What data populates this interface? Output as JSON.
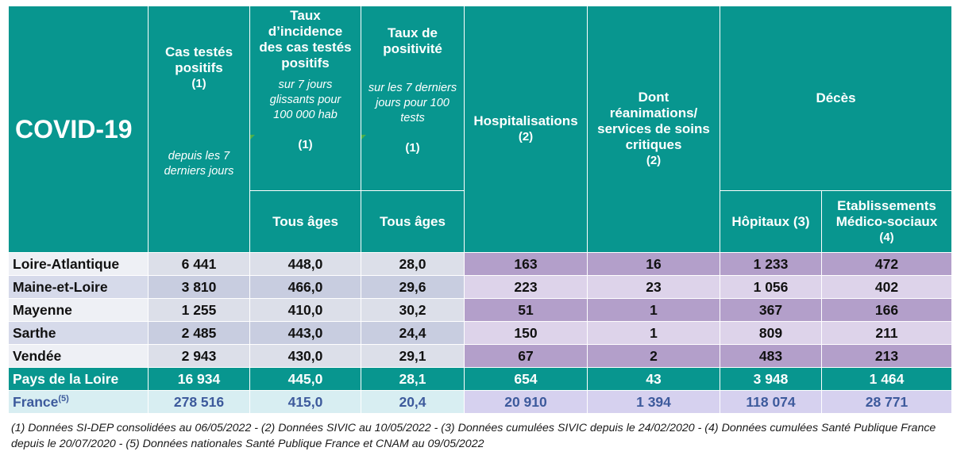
{
  "header": {
    "title": "COVID-19",
    "cas": {
      "label": "Cas testés positifs",
      "note": "(1)",
      "sub": "depuis les 7 derniers jours"
    },
    "taux_incidence": {
      "label": "Taux d’incidence des cas testés positifs",
      "sub": "sur 7 jours glissants pour 100 000 hab",
      "note": "(1)",
      "age": "Tous âges"
    },
    "taux_positivite": {
      "label": "Taux de positivité",
      "sub": "sur les 7 derniers jours pour 100 tests",
      "note": "(1)",
      "age": "Tous âges"
    },
    "hospitalisations": {
      "label": "Hospitalisations",
      "note": "(2)"
    },
    "reanimations": {
      "label": "Dont réanimations/ services de soins critiques",
      "note": "(2)"
    },
    "deces": {
      "label": "Décès",
      "hopitaux": "Hôpitaux (3)",
      "ems": "Etablissements Médico-sociaux",
      "ems_note": "(4)"
    }
  },
  "rows": [
    {
      "name": "Loire-Atlantique",
      "cas": "6 441",
      "incidence": "448,0",
      "positivite": "28,0",
      "hosp": "163",
      "rea": "16",
      "hopitaux": "1 233",
      "ems": "472"
    },
    {
      "name": "Maine-et-Loire",
      "cas": "3 810",
      "incidence": "466,0",
      "positivite": "29,6",
      "hosp": "223",
      "rea": "23",
      "hopitaux": "1 056",
      "ems": "402"
    },
    {
      "name": "Mayenne",
      "cas": "1 255",
      "incidence": "410,0",
      "positivite": "30,2",
      "hosp": "51",
      "rea": "1",
      "hopitaux": "367",
      "ems": "166"
    },
    {
      "name": "Sarthe",
      "cas": "2 485",
      "incidence": "443,0",
      "positivite": "24,4",
      "hosp": "150",
      "rea": "1",
      "hopitaux": "809",
      "ems": "211"
    },
    {
      "name": "Vendée",
      "cas": "2 943",
      "incidence": "430,0",
      "positivite": "29,1",
      "hosp": "67",
      "rea": "2",
      "hopitaux": "483",
      "ems": "213"
    }
  ],
  "region": {
    "name": "Pays de la Loire",
    "cas": "16 934",
    "incidence": "445,0",
    "positivite": "28,1",
    "hosp": "654",
    "rea": "43",
    "hopitaux": "3 948",
    "ems": "1 464"
  },
  "france": {
    "name": "France",
    "sup": "(5)",
    "cas": "278 516",
    "incidence": "415,0",
    "positivite": "20,4",
    "hosp": "20 910",
    "rea": "1 394",
    "hopitaux": "118 074",
    "ems": "28 771"
  },
  "footnote": "(1) Données SI-DEP consolidées au 06/05/2022 -  (2) Données SIVIC au 10/05/2022 - (3) Données cumulées SIVIC depuis le 24/02/2020 - (4) Données cumulées Santé Publique France depuis le 20/07/2020 - (5) Données nationales Santé Publique France et CNAM au 09/05/2022",
  "colors": {
    "teal": "#08968f",
    "purple_dark": "#b39fca",
    "purple_light": "#ddd3ea",
    "france_text": "#3d5a9c"
  }
}
